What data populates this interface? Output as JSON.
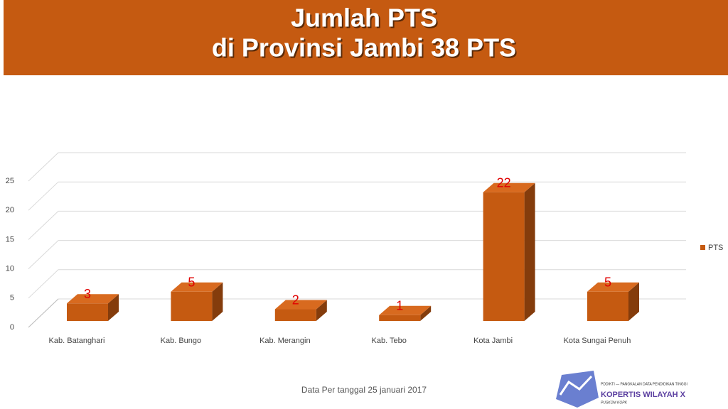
{
  "chart_data": {
    "type": "bar3d",
    "title": [
      "Jumlah PTS",
      "di Provinsi Jambi 38   PTS"
    ],
    "categories": [
      "Kab. Batanghari",
      "Kab. Bungo",
      "Kab. Merangin",
      "Kab. Tebo",
      "Kota Jambi",
      "Kota Sungai Penuh"
    ],
    "series": [
      {
        "name": "PTS",
        "color": "#c55a11",
        "values": [
          3,
          5,
          2,
          1,
          22,
          5
        ]
      }
    ],
    "ylim": [
      0,
      25
    ],
    "yticks": [
      0,
      5,
      10,
      15,
      20,
      25
    ],
    "grid": true,
    "legend": "right",
    "label_color": "#e00000",
    "footnote": "Data Per tanggal 25 januari 2017",
    "logo": {
      "top": "PDDIKTI — PANGKALAN DATA PENDIDIKAN TINGGI",
      "name": "KOPERTIS WILAYAH X",
      "sub": "PUSKOM KOPK"
    }
  }
}
